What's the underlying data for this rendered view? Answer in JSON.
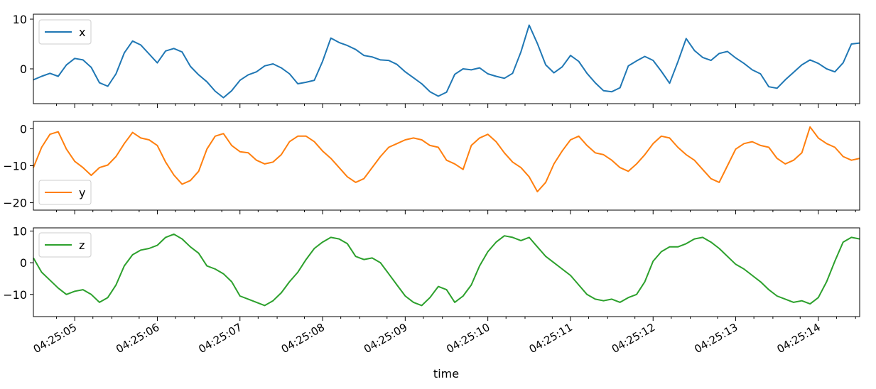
{
  "chart_data": {
    "type": "line",
    "xlabel": "time",
    "x_start": "04:25:04.5",
    "x_end": "04:25:14.5",
    "x_ticks": [
      "04:25:05",
      "04:25:06",
      "04:25:07",
      "04:25:08",
      "04:25:09",
      "04:25:10",
      "04:25:11",
      "04:25:12",
      "04:25:13",
      "04:25:14"
    ],
    "legend_loc": "upper left",
    "panels": [
      {
        "series": {
          "name": "x",
          "color": "#1f77b4",
          "t": [
            0,
            0.1,
            0.2,
            0.3,
            0.4,
            0.5,
            0.6,
            0.7,
            0.8,
            0.9,
            1.0,
            1.1,
            1.2,
            1.3,
            1.4,
            1.5,
            1.6,
            1.7,
            1.8,
            1.9,
            2.0,
            2.1,
            2.2,
            2.3,
            2.4,
            2.5,
            2.6,
            2.7,
            2.8,
            2.9,
            3.0,
            3.1,
            3.2,
            3.3,
            3.4,
            3.5,
            3.6,
            3.7,
            3.8,
            3.9,
            4.0,
            4.1,
            4.2,
            4.3,
            4.4,
            4.5,
            4.6,
            4.7,
            4.8,
            4.9,
            5.0,
            5.1,
            5.2,
            5.3,
            5.4,
            5.5,
            5.6,
            5.7,
            5.8,
            5.9,
            6.0,
            6.1,
            6.2,
            6.3,
            6.4,
            6.5,
            6.6,
            6.7,
            6.8,
            6.9,
            7.0,
            7.1,
            7.2,
            7.3,
            7.4,
            7.5,
            7.6,
            7.7,
            7.8,
            7.9,
            8.0,
            8.1,
            8.2,
            8.3,
            8.4,
            8.5,
            8.6,
            8.7,
            8.8,
            8.9,
            9.0,
            9.1,
            9.2,
            9.3,
            9.4,
            9.5,
            9.6,
            9.7,
            9.8,
            9.9,
            10.0
          ],
          "values": [
            -2.2,
            -1.5,
            -0.9,
            -1.5,
            0.8,
            2.1,
            1.8,
            0.3,
            -2.8,
            -3.5,
            -1.0,
            3.2,
            5.6,
            4.8,
            3.0,
            1.2,
            3.6,
            4.1,
            3.4,
            0.5,
            -1.2,
            -2.6,
            -4.5,
            -5.8,
            -4.4,
            -2.3,
            -1.2,
            -0.6,
            0.6,
            1.0,
            0.2,
            -1.0,
            -3.0,
            -2.7,
            -2.3,
            1.5,
            6.2,
            5.3,
            4.7,
            3.9,
            2.7,
            2.4,
            1.8,
            1.7,
            0.9,
            -0.6,
            -1.8,
            -3.0,
            -4.6,
            -5.5,
            -4.7,
            -1.1,
            0.0,
            -0.2,
            0.2,
            -1.0,
            -1.5,
            -1.9,
            -0.9,
            3.4,
            8.8,
            5.1,
            0.8,
            -0.8,
            0.4,
            2.7,
            1.5,
            -0.9,
            -2.8,
            -4.4,
            -4.6,
            -3.8,
            0.6,
            1.6,
            2.5,
            1.7,
            -0.5,
            -2.9,
            1.4,
            6.1,
            3.7,
            2.3,
            1.7,
            3.1,
            3.5,
            2.2,
            1.1,
            -0.2,
            -1.0,
            -3.6,
            -3.9,
            -2.2,
            -0.7,
            0.8,
            1.8,
            1.1,
            0.0,
            -0.6,
            1.2,
            5.0,
            5.2
          ],
          "ylim": [
            -7,
            11
          ],
          "yticks": [
            0,
            10
          ]
        }
      },
      {
        "series": {
          "name": "y",
          "color": "#ff7f0e",
          "t": [
            0,
            0.1,
            0.2,
            0.3,
            0.4,
            0.5,
            0.6,
            0.7,
            0.8,
            0.9,
            1.0,
            1.1,
            1.2,
            1.3,
            1.4,
            1.5,
            1.6,
            1.7,
            1.8,
            1.9,
            2.0,
            2.1,
            2.2,
            2.3,
            2.4,
            2.5,
            2.6,
            2.7,
            2.8,
            2.9,
            3.0,
            3.1,
            3.2,
            3.3,
            3.4,
            3.5,
            3.6,
            3.7,
            3.8,
            3.9,
            4.0,
            4.1,
            4.2,
            4.3,
            4.4,
            4.5,
            4.6,
            4.7,
            4.8,
            4.9,
            5.0,
            5.1,
            5.2,
            5.3,
            5.4,
            5.5,
            5.6,
            5.7,
            5.8,
            5.9,
            6.0,
            6.1,
            6.2,
            6.3,
            6.4,
            6.5,
            6.6,
            6.7,
            6.8,
            6.9,
            7.0,
            7.1,
            7.2,
            7.3,
            7.4,
            7.5,
            7.6,
            7.7,
            7.8,
            7.9,
            8.0,
            8.1,
            8.2,
            8.3,
            8.4,
            8.5,
            8.6,
            8.7,
            8.8,
            8.9,
            9.0,
            9.1,
            9.2,
            9.3,
            9.4,
            9.5,
            9.6,
            9.7,
            9.8,
            9.9,
            10.0
          ],
          "values": [
            -10.5,
            -5.0,
            -1.5,
            -0.8,
            -5.5,
            -8.8,
            -10.5,
            -12.6,
            -10.5,
            -9.8,
            -7.5,
            -4.0,
            -1.0,
            -2.5,
            -3.0,
            -4.5,
            -9.0,
            -12.5,
            -15.0,
            -14.0,
            -11.5,
            -5.5,
            -2.0,
            -1.3,
            -4.5,
            -6.2,
            -6.5,
            -8.5,
            -9.5,
            -9.0,
            -7.0,
            -3.5,
            -2.0,
            -2.0,
            -3.5,
            -6.0,
            -8.0,
            -10.5,
            -13.0,
            -14.5,
            -13.5,
            -10.5,
            -7.5,
            -5.0,
            -4.0,
            -3.0,
            -2.5,
            -3.0,
            -4.5,
            -5.0,
            -8.5,
            -9.5,
            -11.0,
            -4.5,
            -2.5,
            -1.5,
            -3.5,
            -6.5,
            -9.0,
            -10.5,
            -13.0,
            -17.0,
            -14.5,
            -9.5,
            -6.0,
            -3.0,
            -2.0,
            -4.5,
            -6.5,
            -7.0,
            -8.5,
            -10.5,
            -11.5,
            -9.5,
            -7.0,
            -4.0,
            -2.0,
            -2.5,
            -5.0,
            -7.0,
            -8.5,
            -11.0,
            -13.5,
            -14.5,
            -10.0,
            -5.5,
            -4.0,
            -3.5,
            -4.5,
            -5.0,
            -8.0,
            -9.5,
            -8.5,
            -6.5,
            0.5,
            -2.5,
            -4.0,
            -5.0,
            -7.5,
            -8.5,
            -8.0
          ],
          "ylim": [
            -22,
            2
          ],
          "yticks": [
            0,
            -10,
            -20
          ]
        }
      },
      {
        "series": {
          "name": "z",
          "color": "#2ca02c",
          "t": [
            0,
            0.1,
            0.2,
            0.3,
            0.4,
            0.5,
            0.6,
            0.7,
            0.8,
            0.9,
            1.0,
            1.1,
            1.2,
            1.3,
            1.4,
            1.5,
            1.6,
            1.7,
            1.8,
            1.9,
            2.0,
            2.1,
            2.2,
            2.3,
            2.4,
            2.5,
            2.6,
            2.7,
            2.8,
            2.9,
            3.0,
            3.1,
            3.2,
            3.3,
            3.4,
            3.5,
            3.6,
            3.7,
            3.8,
            3.9,
            4.0,
            4.1,
            4.2,
            4.3,
            4.4,
            4.5,
            4.6,
            4.7,
            4.8,
            4.9,
            5.0,
            5.1,
            5.2,
            5.3,
            5.4,
            5.5,
            5.6,
            5.7,
            5.8,
            5.9,
            6.0,
            6.1,
            6.2,
            6.3,
            6.4,
            6.5,
            6.6,
            6.7,
            6.8,
            6.9,
            7.0,
            7.1,
            7.2,
            7.3,
            7.4,
            7.5,
            7.6,
            7.7,
            7.8,
            7.9,
            8.0,
            8.1,
            8.2,
            8.3,
            8.4,
            8.5,
            8.6,
            8.7,
            8.8,
            8.9,
            9.0,
            9.1,
            9.2,
            9.3,
            9.4,
            9.5,
            9.6,
            9.7,
            9.8,
            9.9,
            10.0
          ],
          "values": [
            1.5,
            -3.0,
            -5.5,
            -8.0,
            -10.0,
            -9.0,
            -8.5,
            -10.0,
            -12.5,
            -11.0,
            -7.0,
            -1.0,
            2.5,
            4.0,
            4.5,
            5.5,
            8.0,
            9.0,
            7.5,
            5.0,
            3.0,
            -1.0,
            -2.0,
            -3.5,
            -6.0,
            -10.5,
            -11.5,
            -12.5,
            -13.5,
            -12.0,
            -9.5,
            -6.0,
            -3.0,
            1.0,
            4.5,
            6.5,
            8.0,
            7.5,
            6.0,
            2.0,
            1.0,
            1.5,
            0.0,
            -3.5,
            -7.0,
            -10.5,
            -12.5,
            -13.5,
            -11.0,
            -7.5,
            -8.5,
            -12.5,
            -10.5,
            -7.0,
            -1.0,
            3.5,
            6.5,
            8.5,
            8.0,
            7.0,
            8.0,
            5.0,
            2.0,
            0.0,
            -2.0,
            -4.0,
            -7.0,
            -10.0,
            -11.5,
            -12.0,
            -11.5,
            -12.5,
            -11.0,
            -10.0,
            -6.0,
            0.5,
            3.5,
            5.0,
            5.0,
            6.0,
            7.5,
            8.0,
            6.5,
            4.5,
            2.0,
            -0.5,
            -2.0,
            -4.0,
            -6.0,
            -8.5,
            -10.5,
            -11.5,
            -12.5,
            -12.0,
            -13.0,
            -11.0,
            -6.0,
            0.5,
            6.5,
            8.0,
            7.5
          ],
          "ylim": [
            -17,
            11
          ],
          "yticks": [
            10,
            0,
            -10
          ]
        }
      }
    ]
  }
}
